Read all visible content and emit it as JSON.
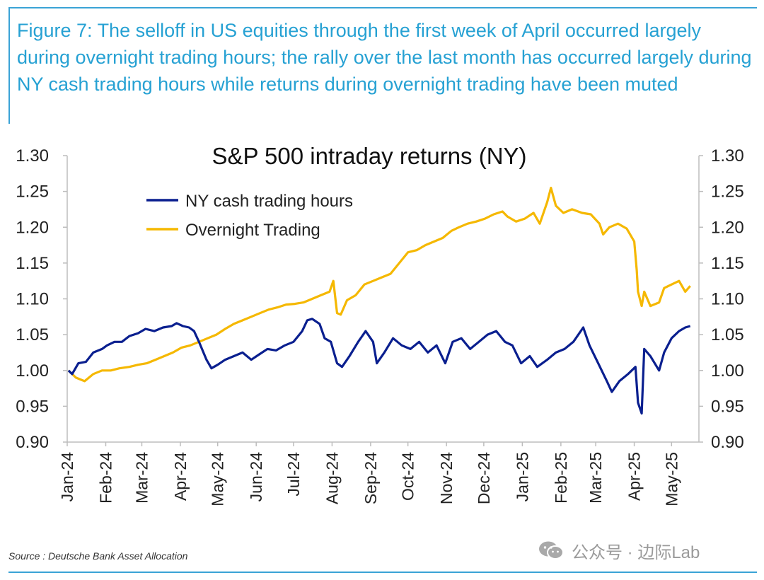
{
  "caption": "Figure 7: The selloff in US equities through the first week of April occurred largely during overnight trading hours; the rally over the last month has occurred largely during NY cash trading hours while returns during overnight trading have been muted",
  "source": "Source : Deutsche Bank Asset Allocation",
  "watermark": "公众号 · 边际Lab",
  "colors": {
    "accent": "#26a1d3",
    "ny_series": "#0a1f8f",
    "overnight_series": "#f5b800",
    "axis": "#bdbdbd"
  },
  "chart_data": {
    "type": "line",
    "title": "S&P 500 intraday returns (NY)",
    "xlabel": "",
    "ylabel": "",
    "ylim": [
      0.9,
      1.3
    ],
    "yticks": [
      "1.30",
      "1.25",
      "1.20",
      "1.15",
      "1.10",
      "1.05",
      "1.00",
      "0.95",
      "0.90"
    ],
    "secondary_yticks": [
      "1.30",
      "1.25",
      "1.20",
      "1.15",
      "1.10",
      "1.05",
      "1.00",
      "0.95",
      "0.90"
    ],
    "x_tick_labels": [
      "Jan-24",
      "Feb-24",
      "Mar-24",
      "Apr-24",
      "May-24",
      "Jun-24",
      "Jul-24",
      "Aug-24",
      "Sep-24",
      "Oct-24",
      "Nov-24",
      "Dec-24",
      "Jan-25",
      "Feb-25",
      "Mar-25",
      "Apr-25",
      "May-25"
    ],
    "legend_position": "top-left",
    "grid": false,
    "series": [
      {
        "name": "NY cash trading hours",
        "color": "#0a1f8f",
        "points": [
          [
            "2024-01-02",
            1.0
          ],
          [
            "2024-01-05",
            0.995
          ],
          [
            "2024-01-10",
            1.01
          ],
          [
            "2024-01-16",
            1.012
          ],
          [
            "2024-01-22",
            1.025
          ],
          [
            "2024-01-29",
            1.03
          ],
          [
            "2024-02-02",
            1.035
          ],
          [
            "2024-02-08",
            1.04
          ],
          [
            "2024-02-14",
            1.04
          ],
          [
            "2024-02-20",
            1.048
          ],
          [
            "2024-02-27",
            1.052
          ],
          [
            "2024-03-04",
            1.058
          ],
          [
            "2024-03-11",
            1.055
          ],
          [
            "2024-03-18",
            1.06
          ],
          [
            "2024-03-25",
            1.062
          ],
          [
            "2024-03-29",
            1.066
          ],
          [
            "2024-04-03",
            1.062
          ],
          [
            "2024-04-08",
            1.06
          ],
          [
            "2024-04-12",
            1.055
          ],
          [
            "2024-04-16",
            1.04
          ],
          [
            "2024-04-22",
            1.015
          ],
          [
            "2024-04-26",
            1.003
          ],
          [
            "2024-05-01",
            1.008
          ],
          [
            "2024-05-07",
            1.015
          ],
          [
            "2024-05-14",
            1.02
          ],
          [
            "2024-05-21",
            1.025
          ],
          [
            "2024-05-28",
            1.015
          ],
          [
            "2024-06-03",
            1.022
          ],
          [
            "2024-06-10",
            1.03
          ],
          [
            "2024-06-17",
            1.028
          ],
          [
            "2024-06-24",
            1.035
          ],
          [
            "2024-07-01",
            1.04
          ],
          [
            "2024-07-08",
            1.055
          ],
          [
            "2024-07-12",
            1.07
          ],
          [
            "2024-07-16",
            1.072
          ],
          [
            "2024-07-22",
            1.065
          ],
          [
            "2024-07-26",
            1.045
          ],
          [
            "2024-07-31",
            1.04
          ],
          [
            "2024-08-05",
            1.01
          ],
          [
            "2024-08-09",
            1.005
          ],
          [
            "2024-08-15",
            1.02
          ],
          [
            "2024-08-22",
            1.04
          ],
          [
            "2024-08-28",
            1.055
          ],
          [
            "2024-09-03",
            1.04
          ],
          [
            "2024-09-06",
            1.01
          ],
          [
            "2024-09-12",
            1.025
          ],
          [
            "2024-09-19",
            1.045
          ],
          [
            "2024-09-26",
            1.035
          ],
          [
            "2024-10-03",
            1.03
          ],
          [
            "2024-10-10",
            1.04
          ],
          [
            "2024-10-17",
            1.025
          ],
          [
            "2024-10-24",
            1.035
          ],
          [
            "2024-10-31",
            1.01
          ],
          [
            "2024-11-06",
            1.04
          ],
          [
            "2024-11-13",
            1.045
          ],
          [
            "2024-11-20",
            1.03
          ],
          [
            "2024-11-27",
            1.04
          ],
          [
            "2024-12-04",
            1.05
          ],
          [
            "2024-12-11",
            1.055
          ],
          [
            "2024-12-18",
            1.04
          ],
          [
            "2024-12-24",
            1.035
          ],
          [
            "2024-12-31",
            1.01
          ],
          [
            "2025-01-07",
            1.02
          ],
          [
            "2025-01-13",
            1.005
          ],
          [
            "2025-01-21",
            1.015
          ],
          [
            "2025-01-28",
            1.025
          ],
          [
            "2025-02-04",
            1.03
          ],
          [
            "2025-02-11",
            1.04
          ],
          [
            "2025-02-19",
            1.06
          ],
          [
            "2025-02-24",
            1.035
          ],
          [
            "2025-03-03",
            1.01
          ],
          [
            "2025-03-10",
            0.985
          ],
          [
            "2025-03-14",
            0.97
          ],
          [
            "2025-03-20",
            0.985
          ],
          [
            "2025-03-27",
            0.995
          ],
          [
            "2025-04-02",
            1.005
          ],
          [
            "2025-04-04",
            0.955
          ],
          [
            "2025-04-07",
            0.94
          ],
          [
            "2025-04-09",
            1.03
          ],
          [
            "2025-04-14",
            1.02
          ],
          [
            "2025-04-21",
            1.0
          ],
          [
            "2025-04-25",
            1.025
          ],
          [
            "2025-05-01",
            1.045
          ],
          [
            "2025-05-07",
            1.055
          ],
          [
            "2025-05-12",
            1.06
          ],
          [
            "2025-05-16",
            1.062
          ]
        ]
      },
      {
        "name": "Overnight Trading",
        "color": "#f5b800",
        "points": [
          [
            "2024-01-02",
            1.0
          ],
          [
            "2024-01-08",
            0.99
          ],
          [
            "2024-01-15",
            0.985
          ],
          [
            "2024-01-22",
            0.995
          ],
          [
            "2024-01-29",
            1.0
          ],
          [
            "2024-02-05",
            1.0
          ],
          [
            "2024-02-12",
            1.003
          ],
          [
            "2024-02-20",
            1.005
          ],
          [
            "2024-02-27",
            1.008
          ],
          [
            "2024-03-05",
            1.01
          ],
          [
            "2024-03-12",
            1.015
          ],
          [
            "2024-03-19",
            1.02
          ],
          [
            "2024-03-26",
            1.025
          ],
          [
            "2024-04-02",
            1.032
          ],
          [
            "2024-04-09",
            1.035
          ],
          [
            "2024-04-16",
            1.04
          ],
          [
            "2024-04-23",
            1.045
          ],
          [
            "2024-04-30",
            1.05
          ],
          [
            "2024-05-07",
            1.058
          ],
          [
            "2024-05-14",
            1.065
          ],
          [
            "2024-05-21",
            1.07
          ],
          [
            "2024-05-28",
            1.075
          ],
          [
            "2024-06-04",
            1.08
          ],
          [
            "2024-06-11",
            1.085
          ],
          [
            "2024-06-18",
            1.088
          ],
          [
            "2024-06-25",
            1.092
          ],
          [
            "2024-07-02",
            1.093
          ],
          [
            "2024-07-09",
            1.095
          ],
          [
            "2024-07-16",
            1.1
          ],
          [
            "2024-07-23",
            1.105
          ],
          [
            "2024-07-30",
            1.11
          ],
          [
            "2024-08-02",
            1.125
          ],
          [
            "2024-08-05",
            1.08
          ],
          [
            "2024-08-08",
            1.078
          ],
          [
            "2024-08-13",
            1.098
          ],
          [
            "2024-08-20",
            1.105
          ],
          [
            "2024-08-27",
            1.12
          ],
          [
            "2024-09-03",
            1.125
          ],
          [
            "2024-09-10",
            1.13
          ],
          [
            "2024-09-17",
            1.135
          ],
          [
            "2024-09-24",
            1.15
          ],
          [
            "2024-10-01",
            1.165
          ],
          [
            "2024-10-08",
            1.168
          ],
          [
            "2024-10-15",
            1.175
          ],
          [
            "2024-10-22",
            1.18
          ],
          [
            "2024-10-29",
            1.185
          ],
          [
            "2024-11-05",
            1.195
          ],
          [
            "2024-11-11",
            1.2
          ],
          [
            "2024-11-18",
            1.205
          ],
          [
            "2024-11-25",
            1.208
          ],
          [
            "2024-12-02",
            1.212
          ],
          [
            "2024-12-09",
            1.218
          ],
          [
            "2024-12-16",
            1.222
          ],
          [
            "2024-12-20",
            1.215
          ],
          [
            "2024-12-27",
            1.208
          ],
          [
            "2025-01-03",
            1.212
          ],
          [
            "2025-01-10",
            1.22
          ],
          [
            "2025-01-15",
            1.205
          ],
          [
            "2025-01-21",
            1.235
          ],
          [
            "2025-01-24",
            1.255
          ],
          [
            "2025-01-28",
            1.23
          ],
          [
            "2025-02-03",
            1.22
          ],
          [
            "2025-02-10",
            1.225
          ],
          [
            "2025-02-18",
            1.22
          ],
          [
            "2025-02-25",
            1.218
          ],
          [
            "2025-03-04",
            1.205
          ],
          [
            "2025-03-07",
            1.19
          ],
          [
            "2025-03-12",
            1.2
          ],
          [
            "2025-03-19",
            1.205
          ],
          [
            "2025-03-26",
            1.198
          ],
          [
            "2025-04-01",
            1.18
          ],
          [
            "2025-04-03",
            1.14
          ],
          [
            "2025-04-04",
            1.11
          ],
          [
            "2025-04-07",
            1.09
          ],
          [
            "2025-04-09",
            1.11
          ],
          [
            "2025-04-14",
            1.09
          ],
          [
            "2025-04-21",
            1.095
          ],
          [
            "2025-04-25",
            1.115
          ],
          [
            "2025-05-01",
            1.12
          ],
          [
            "2025-05-07",
            1.125
          ],
          [
            "2025-05-12",
            1.11
          ],
          [
            "2025-05-16",
            1.118
          ]
        ]
      }
    ]
  }
}
